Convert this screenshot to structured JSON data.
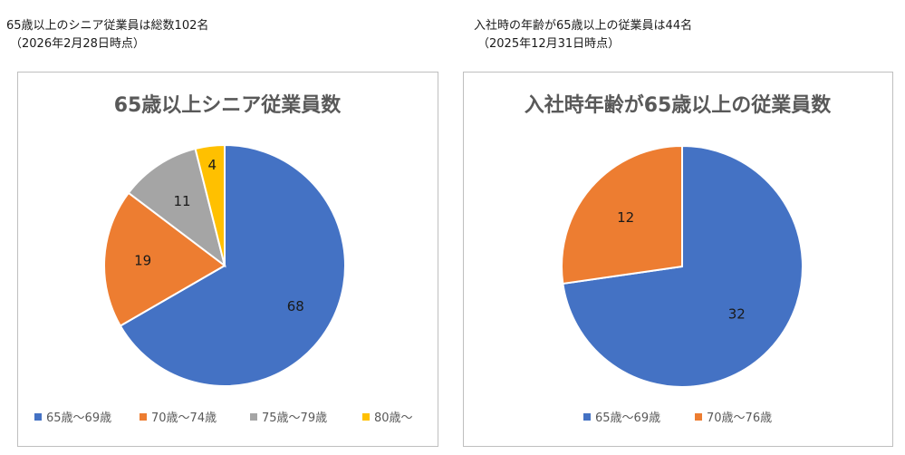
{
  "captions": {
    "left": {
      "line1": "65歳以上のシニア従業員は総数102名",
      "line2": "（2026年2月28日時点）"
    },
    "right": {
      "line1": "入社時の年齢が65歳以上の従業員は44名",
      "line2": "（2025年12月31日時点）"
    }
  },
  "chart_data": [
    {
      "type": "pie",
      "title": "65歳以上シニア従業員数",
      "categories": [
        "65歳～69歳",
        "70歳～74歳",
        "75歳～79歳",
        "80歳～"
      ],
      "values": [
        68,
        19,
        11,
        4
      ],
      "colors": [
        "#4472C4",
        "#ED7D31",
        "#A5A5A5",
        "#FFC000"
      ],
      "start": "12 o'clock, clockwise",
      "legend": "bottom"
    },
    {
      "type": "pie",
      "title": "入社時年齢が65歳以上の従業員数",
      "categories": [
        "65歳～69歳",
        "70歳～76歳"
      ],
      "values": [
        32,
        12
      ],
      "colors": [
        "#4472C4",
        "#ED7D31"
      ],
      "start": "12 o'clock, clockwise",
      "legend": "bottom"
    }
  ]
}
